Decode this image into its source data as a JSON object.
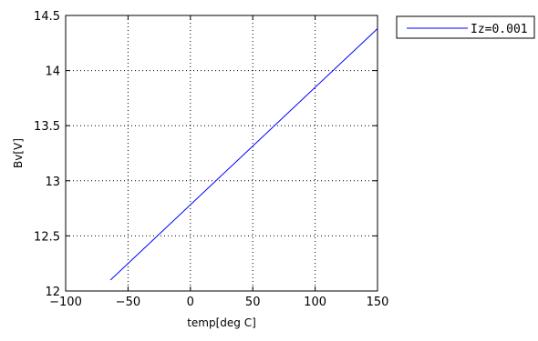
{
  "chart_data": {
    "type": "line",
    "xlabel": "temp[deg C]",
    "ylabel": "Bv[V]",
    "xlim": [
      -100,
      150
    ],
    "ylim": [
      12,
      14.5
    ],
    "xticks": [
      -100,
      -50,
      0,
      50,
      100,
      150
    ],
    "xtick_labels": [
      "−100",
      "−50",
      "0",
      "50",
      "100",
      "150"
    ],
    "yticks": [
      12,
      12.5,
      13,
      13.5,
      14,
      14.5
    ],
    "ytick_labels": [
      "12",
      "12.5",
      "13",
      "13.5",
      "14",
      "14.5"
    ],
    "grid": true,
    "grid_style": "dotted",
    "legend_position": "outside-top-right",
    "series": [
      {
        "name": "Iz=0.001",
        "color": "#0000ff",
        "x": [
          -64,
          150
        ],
        "y": [
          12.1,
          14.38
        ]
      }
    ]
  }
}
